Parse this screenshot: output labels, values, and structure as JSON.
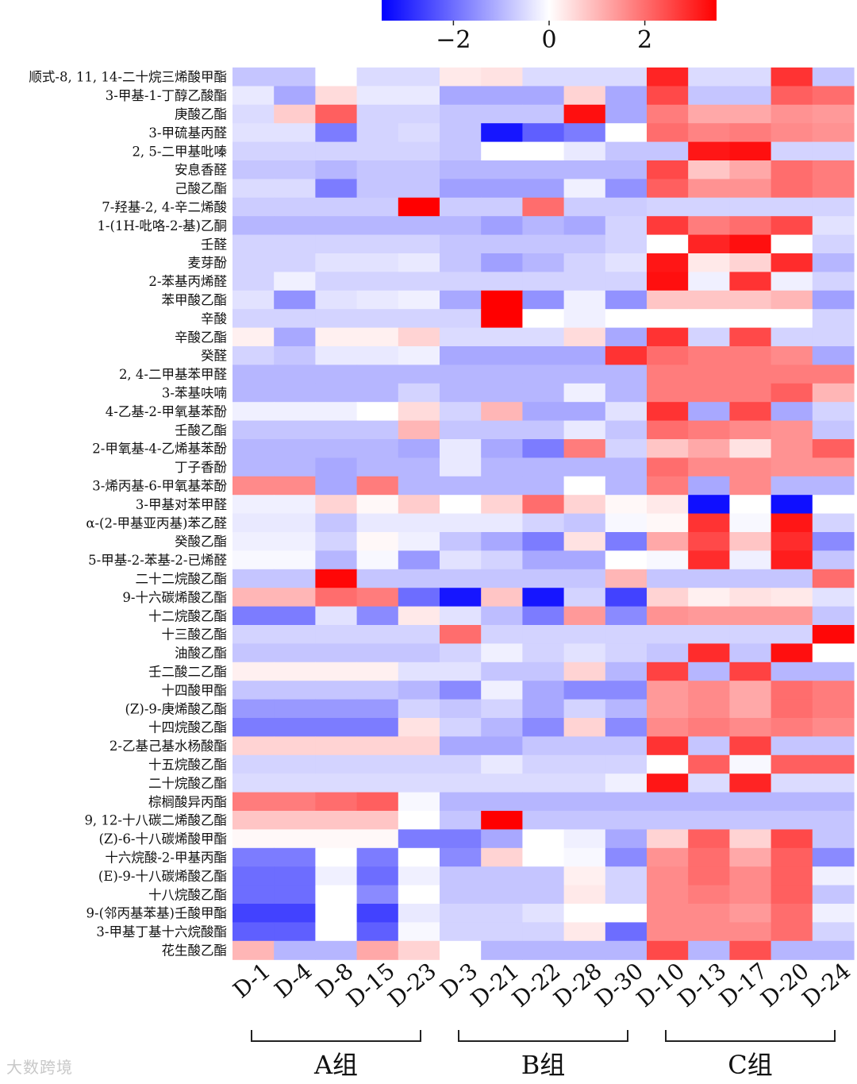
{
  "chart_data": {
    "type": "heatmap",
    "color_scale": {
      "min": -3.5,
      "max": 3.5,
      "low": "#0000ff",
      "mid": "#ffffff",
      "high": "#ff0000",
      "ticks": [
        "−2",
        "0",
        "2"
      ],
      "tick_values": [
        -2,
        0,
        2
      ]
    },
    "columns": [
      "D-1",
      "D-4",
      "D-8",
      "D-15",
      "D-23",
      "D-3",
      "D-21",
      "D-22",
      "D-28",
      "D-30",
      "D-10",
      "D-13",
      "D-17",
      "D-20",
      "D-24"
    ],
    "groups": [
      {
        "label": "A组",
        "start": 0,
        "end": 4
      },
      {
        "label": "B组",
        "start": 5,
        "end": 9
      },
      {
        "label": "C组",
        "start": 10,
        "end": 14
      }
    ],
    "rows": [
      "顺式-8, 11, 14-二十烷三烯酸甲酯",
      "3-甲基-1-丁醇乙酸酯",
      "庚酸乙酯",
      "3-甲硫基丙醛",
      "2, 5-二甲基吡嗪",
      "安息香醛",
      "己酸乙酯",
      "7-羟基-2, 4-辛二烯酸",
      "1-(1H-吡咯-2-基)乙酮",
      "壬醛",
      "麦芽酚",
      "2-苯基丙烯醛",
      "苯甲酸乙酯",
      "辛酸",
      "辛酸乙酯",
      "癸醛",
      "2, 4-二甲基苯甲醛",
      "3-苯基呋喃",
      "4-乙基-2-甲氧基苯酚",
      "壬酸乙酯",
      "2-甲氧基-4-乙烯基苯酚",
      "丁子香酚",
      "3-烯丙基-6-甲氧基苯酚",
      "3-甲基对苯甲醛",
      "α-(2-甲基亚丙基)苯乙醛",
      "癸酸乙酯",
      "5-甲基-2-苯基-2-已烯醛",
      "二十二烷酸乙酯",
      "9-十六碳烯酸乙酯",
      "十二烷酸乙酯",
      "十三酸乙酯",
      "油酸乙酯",
      "壬二酸二乙酯",
      "十四酸甲酯",
      "(Z)-9-庚烯酸乙酯",
      "十四烷酸乙酯",
      "2-乙基己基水杨酸酯",
      "十五烷酸乙酯",
      "二十烷酸乙酯",
      "棕榈酸异丙酯",
      "9, 12-十八碳二烯酸乙酯",
      "(Z)-6-十八碳烯酸甲酯",
      "十六烷酸-2-甲基丙酯",
      "(E)-9-十八碳烯酸乙酯",
      "十八烷酸乙酯",
      "9-(邻丙基苯基)壬酸甲酯",
      "3-甲基丁基十六烷酸酯",
      "花生酸乙酯"
    ],
    "values": [
      [
        -0.8,
        -0.8,
        0,
        -0.5,
        -0.5,
        0.3,
        0.4,
        -0.5,
        -0.5,
        -0.5,
        3.0,
        -0.5,
        -0.5,
        2.8,
        -0.8
      ],
      [
        -0.3,
        -1.2,
        0.5,
        -0.3,
        -0.3,
        -1.2,
        -1.2,
        -1.2,
        0.6,
        -1.2,
        2.5,
        -0.8,
        -0.8,
        2.2,
        2.0
      ],
      [
        -0.5,
        0.7,
        2.2,
        -0.6,
        -0.6,
        -0.8,
        -0.8,
        -0.8,
        3.3,
        -1.2,
        1.8,
        1.2,
        1.2,
        1.5,
        1.4
      ],
      [
        -0.4,
        -0.4,
        -1.8,
        -0.6,
        -0.5,
        -0.8,
        -3.2,
        -2.2,
        -1.8,
        0,
        2.0,
        1.7,
        1.8,
        1.6,
        1.5
      ],
      [
        -0.6,
        -0.6,
        -0.6,
        -0.6,
        -0.6,
        -0.8,
        0,
        0,
        -0.3,
        -0.8,
        -0.8,
        3.2,
        3.3,
        -0.6,
        -0.6
      ],
      [
        -0.8,
        -0.8,
        -1.0,
        -0.8,
        -0.8,
        -1.0,
        -1.0,
        -1.0,
        -1.0,
        -1.0,
        2.5,
        0.8,
        1.2,
        2.0,
        1.8
      ],
      [
        -0.5,
        -0.5,
        -1.8,
        -0.8,
        -0.8,
        -1.3,
        -1.3,
        -1.3,
        -0.2,
        -1.5,
        2.2,
        1.5,
        1.5,
        2.0,
        1.8
      ],
      [
        -0.7,
        -0.7,
        -0.7,
        -0.7,
        3.5,
        -0.7,
        -0.7,
        2.0,
        -0.7,
        -0.7,
        -0.6,
        -0.6,
        -0.6,
        -0.6,
        -0.6
      ],
      [
        -1.0,
        -1.0,
        -1.0,
        -1.0,
        -1.0,
        -1.0,
        -1.3,
        -1.0,
        -1.2,
        -0.6,
        2.7,
        1.8,
        2.0,
        2.5,
        -0.4
      ],
      [
        -0.6,
        -0.6,
        -0.6,
        -0.6,
        -0.6,
        -0.8,
        -0.8,
        -0.8,
        -0.8,
        -0.6,
        0,
        3.0,
        3.3,
        0,
        -0.6
      ],
      [
        -0.6,
        -0.6,
        -0.4,
        -0.4,
        -0.3,
        -0.8,
        -1.3,
        -1.0,
        -0.6,
        -0.4,
        3.2,
        0.3,
        0.6,
        2.9,
        -1.0
      ],
      [
        -0.6,
        -0.2,
        -0.6,
        -0.6,
        -0.6,
        -0.6,
        -0.6,
        -0.6,
        -0.6,
        -0.6,
        3.3,
        -0.2,
        2.8,
        -0.2,
        -0.6
      ],
      [
        -0.4,
        -1.5,
        -0.4,
        -0.3,
        -0.2,
        -1.2,
        3.5,
        -1.5,
        -0.2,
        -1.5,
        0.8,
        0.8,
        0.8,
        1.0,
        -1.3
      ],
      [
        -0.6,
        -0.6,
        -0.6,
        -0.6,
        -0.6,
        -0.6,
        3.5,
        0,
        -0.2,
        0,
        0,
        0,
        0,
        0,
        -0.6
      ],
      [
        0.2,
        -1.2,
        0.2,
        0.2,
        0.6,
        -0.5,
        -0.5,
        -0.5,
        0.5,
        -1.2,
        2.8,
        -0.6,
        2.5,
        -0.6,
        -0.6
      ],
      [
        -0.6,
        -0.8,
        -0.3,
        -0.3,
        -0.2,
        -1.2,
        -1.2,
        -1.2,
        -1.2,
        2.8,
        2.0,
        1.8,
        1.8,
        1.6,
        -1.2
      ],
      [
        -1.0,
        -1.0,
        -1.0,
        -1.0,
        -1.0,
        -1.0,
        -1.0,
        -1.0,
        -1.0,
        -1.0,
        1.8,
        1.8,
        1.8,
        1.8,
        1.8
      ],
      [
        -1.0,
        -1.0,
        -1.0,
        -1.0,
        -0.6,
        -1.0,
        -1.0,
        -1.0,
        -0.2,
        -1.0,
        1.8,
        1.8,
        1.8,
        2.2,
        1.0
      ],
      [
        -0.2,
        -0.2,
        -0.2,
        0,
        0.5,
        -0.6,
        1.0,
        -1.2,
        -1.2,
        -0.4,
        2.8,
        -1.2,
        2.5,
        -1.2,
        -0.6
      ],
      [
        -0.8,
        -0.8,
        -0.8,
        -0.8,
        1.0,
        -0.8,
        -0.8,
        -0.8,
        -0.3,
        -0.8,
        2.0,
        1.8,
        1.6,
        1.5,
        -0.8
      ],
      [
        -1.0,
        -1.0,
        -1.0,
        -1.0,
        -1.2,
        -0.3,
        -1.2,
        -1.8,
        1.8,
        -0.6,
        0.8,
        1.2,
        0.4,
        1.5,
        2.2
      ],
      [
        -1.0,
        -1.0,
        -1.2,
        -1.0,
        -1.0,
        -0.3,
        -1.0,
        -1.0,
        -1.0,
        -1.0,
        2.0,
        1.6,
        1.6,
        1.5,
        1.5
      ],
      [
        1.6,
        1.6,
        -1.2,
        1.8,
        -1.0,
        -1.0,
        -1.0,
        -1.0,
        0,
        -1.0,
        1.8,
        -1.2,
        1.6,
        -1.0,
        -1.0
      ],
      [
        -0.2,
        -0.2,
        0.6,
        0.1,
        0.7,
        0,
        0.6,
        2.0,
        0.6,
        0.1,
        0.3,
        -3.3,
        0,
        -3.3,
        0
      ],
      [
        -0.3,
        -0.3,
        -0.8,
        -0.3,
        -0.3,
        -0.3,
        -0.3,
        -0.6,
        -0.8,
        -0.1,
        0.1,
        2.8,
        -0.1,
        3.2,
        -0.6
      ],
      [
        -0.2,
        -0.2,
        -0.6,
        0.1,
        -0.2,
        -0.8,
        -1.2,
        -1.8,
        0.4,
        -1.8,
        1.2,
        2.5,
        0.8,
        2.9,
        -1.6
      ],
      [
        -0.1,
        -0.1,
        -1.0,
        -0.1,
        -1.4,
        -0.4,
        -0.6,
        -1.2,
        -1.2,
        0,
        -0.1,
        2.9,
        -0.2,
        3.1,
        -0.8
      ],
      [
        -0.8,
        -0.8,
        3.4,
        -0.8,
        -0.8,
        -0.8,
        -0.8,
        -0.8,
        -0.8,
        1.0,
        -0.8,
        -0.8,
        -0.8,
        -0.8,
        2.0
      ],
      [
        1.0,
        1.0,
        2.0,
        1.8,
        -2.0,
        -3.2,
        0.8,
        -3.2,
        -0.6,
        -2.6,
        0.6,
        0.2,
        0.4,
        0.3,
        -0.4
      ],
      [
        -1.8,
        -1.8,
        -0.4,
        -1.6,
        0.3,
        -0.4,
        -0.9,
        -1.8,
        1.4,
        -1.6,
        1.5,
        1.4,
        1.4,
        1.4,
        -0.8
      ],
      [
        -0.6,
        -0.6,
        -0.6,
        -0.6,
        -0.6,
        2.0,
        -0.6,
        -0.6,
        -0.6,
        -0.6,
        -0.6,
        -0.6,
        -0.6,
        -0.6,
        3.4
      ],
      [
        -0.8,
        -0.8,
        -0.8,
        -0.8,
        -0.8,
        -0.6,
        -0.2,
        -0.6,
        -0.4,
        -0.6,
        -0.8,
        2.9,
        -0.8,
        3.3,
        0
      ],
      [
        0.2,
        0.2,
        0.2,
        0.2,
        -0.4,
        -0.4,
        -0.8,
        -0.8,
        0.6,
        -1.0,
        2.6,
        -1.0,
        2.6,
        -1.0,
        -1.0
      ],
      [
        -0.8,
        -0.8,
        -0.8,
        -0.8,
        -1.0,
        -1.6,
        -0.2,
        -1.2,
        -1.6,
        -1.6,
        1.4,
        1.6,
        1.2,
        2.0,
        1.8
      ],
      [
        -1.4,
        -1.4,
        -1.4,
        -1.4,
        -0.6,
        -0.8,
        -0.6,
        -1.2,
        -0.6,
        -1.0,
        1.4,
        1.6,
        1.2,
        2.0,
        1.8
      ],
      [
        -1.8,
        -1.8,
        -1.8,
        -1.8,
        0.4,
        -0.6,
        -1.0,
        -1.6,
        0.6,
        -1.6,
        1.6,
        1.8,
        1.6,
        1.8,
        1.6
      ],
      [
        0.6,
        0.6,
        0.6,
        0.6,
        0.6,
        -1.2,
        -1.2,
        -0.8,
        -0.8,
        -0.8,
        2.8,
        -0.8,
        2.6,
        -0.8,
        -0.8
      ],
      [
        -0.6,
        -0.6,
        -0.6,
        -0.6,
        -0.6,
        -0.6,
        -0.3,
        -0.6,
        -0.6,
        -0.6,
        0,
        2.2,
        -0.1,
        2.2,
        2.2
      ],
      [
        -0.5,
        -0.5,
        -0.5,
        -0.5,
        -0.5,
        -0.5,
        -0.5,
        -0.5,
        -0.5,
        -0.2,
        3.2,
        -0.5,
        3.0,
        -0.5,
        -0.5
      ],
      [
        1.8,
        1.8,
        2.0,
        2.2,
        -0.1,
        -1.0,
        -1.0,
        -1.0,
        -1.0,
        -1.0,
        -1.0,
        -1.0,
        -1.0,
        -1.0,
        -1.0
      ],
      [
        0.8,
        0.8,
        0.8,
        0.8,
        0,
        -0.8,
        3.5,
        -0.8,
        -0.8,
        -0.8,
        -0.8,
        -0.8,
        -0.8,
        -0.8,
        -0.8
      ],
      [
        0.1,
        0.1,
        0.1,
        0.1,
        -1.8,
        -1.8,
        -1.2,
        0,
        -0.2,
        -1.2,
        0.6,
        2.2,
        0.6,
        2.5,
        -0.8
      ],
      [
        -1.8,
        -1.8,
        0,
        -1.8,
        0,
        -1.6,
        0.6,
        0,
        -0.1,
        -1.6,
        1.5,
        2.0,
        1.2,
        2.2,
        -1.6
      ],
      [
        -2.0,
        -2.0,
        -0.2,
        -2.0,
        -0.2,
        -0.8,
        -0.8,
        -0.8,
        0.2,
        -0.6,
        1.6,
        2.0,
        1.6,
        2.2,
        -0.2
      ],
      [
        -2.0,
        -2.0,
        0,
        -1.6,
        0,
        -0.8,
        -0.8,
        -0.8,
        0.3,
        -0.6,
        1.6,
        1.8,
        1.6,
        2.2,
        -0.8
      ],
      [
        -2.6,
        -2.6,
        0,
        -2.6,
        -0.3,
        -0.6,
        -0.6,
        -0.4,
        0,
        0,
        1.6,
        1.6,
        1.4,
        2.0,
        -0.2
      ],
      [
        -2.2,
        -2.2,
        0,
        -2.2,
        -0.1,
        -0.6,
        -0.6,
        -0.6,
        0.3,
        -2.0,
        1.6,
        1.6,
        1.6,
        2.0,
        -0.6
      ],
      [
        1.0,
        -1.0,
        -1.0,
        1.2,
        0.6,
        0,
        -1.0,
        -1.0,
        -1.0,
        -1.0,
        2.5,
        -1.0,
        2.4,
        -1.0,
        -1.0
      ]
    ]
  },
  "watermark": "大数跨境"
}
